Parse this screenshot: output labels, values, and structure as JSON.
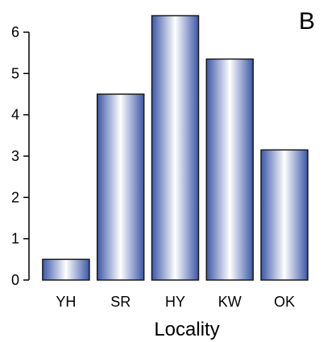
{
  "panel_label": "B",
  "chart_data": {
    "type": "bar",
    "categories": [
      "YH",
      "SR",
      "HY",
      "KW",
      "OK"
    ],
    "values": [
      0.5,
      4.5,
      6.4,
      5.35,
      3.15
    ],
    "xlabel": "Locality",
    "ylabel": "",
    "ylim": [
      0,
      6.5
    ],
    "yticks": [
      0,
      1,
      2,
      3,
      4,
      5,
      6
    ],
    "grid": false,
    "legend": "none",
    "colors": {
      "bar_edge": "#1a1a1a",
      "bar_dark": "#3c57a8",
      "bar_light": "#ffffff",
      "axis": "#000000"
    }
  }
}
